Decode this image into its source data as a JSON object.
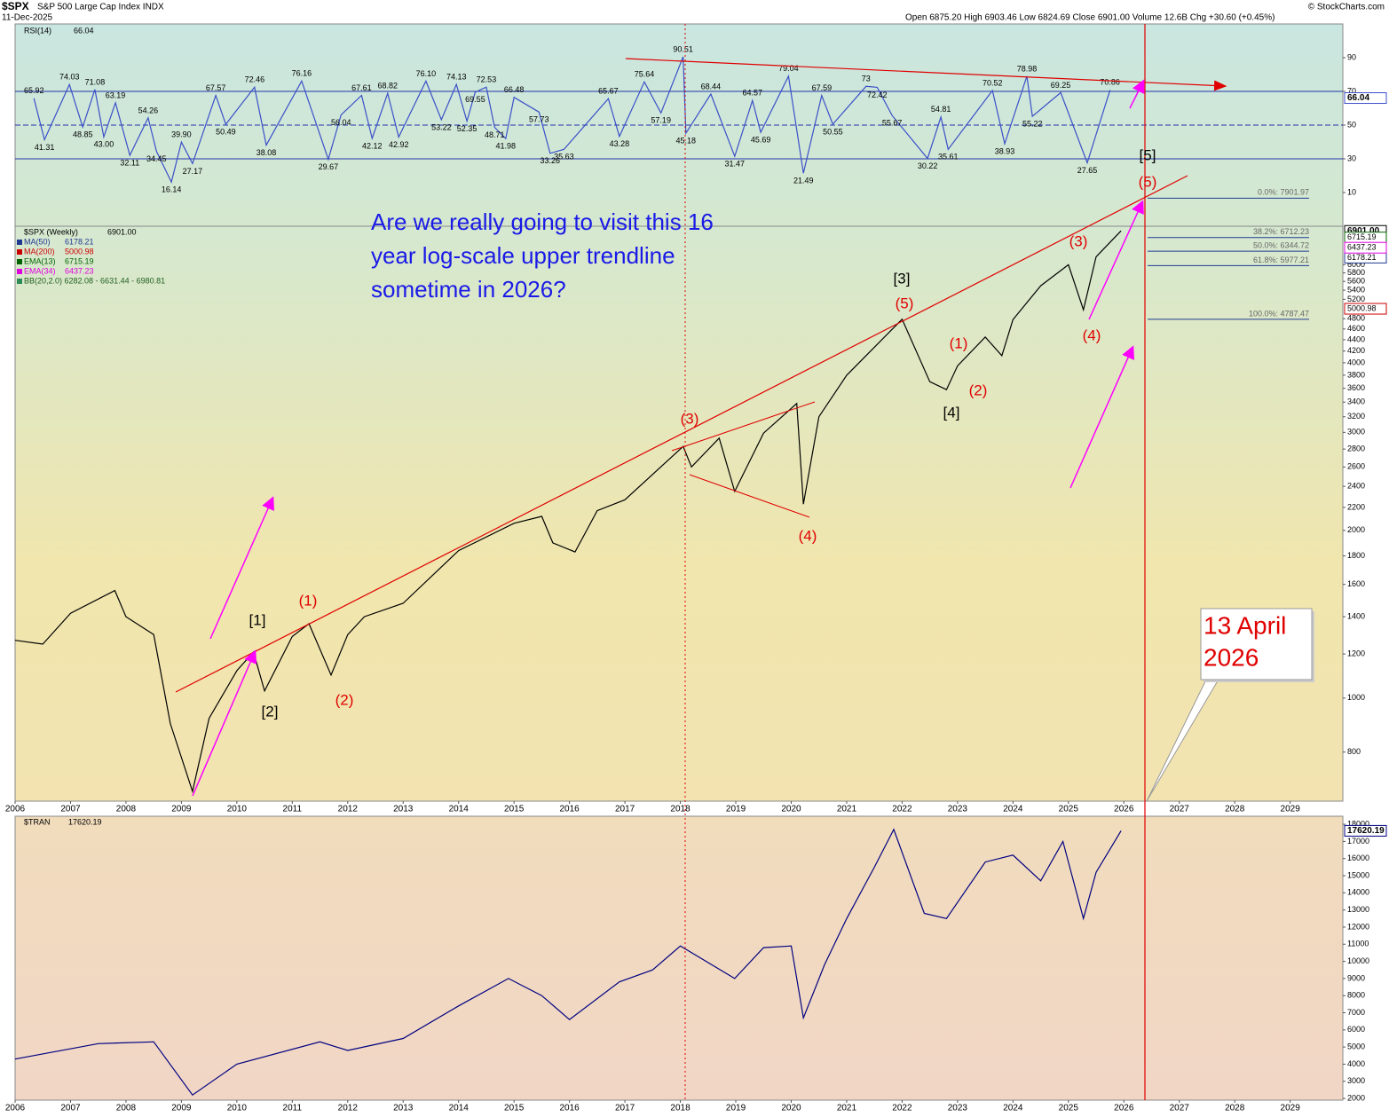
{
  "header": {
    "symbol": "$SPX",
    "name": "S&P 500 Large Cap Index INDX",
    "date": "11-Dec-2025",
    "quote": "Open 6875.20  High 6903.46  Low 6824.69  Close 6901.00  Volume 12.6B  Chg +30.60 (+0.45%)",
    "credit": "© StockCharts.com"
  },
  "annotation": {
    "question": [
      "Are we really going to visit this 16",
      "year log-scale upper trendline",
      "sometime in 2026?"
    ],
    "callout": [
      "13 April",
      "2026"
    ],
    "waves": [
      "[1]",
      "[2]",
      "(1)",
      "(2)",
      "(3)",
      "(4)",
      "[3]",
      "(5)",
      "(1)",
      "(2)",
      "[4]",
      "(3)",
      "(4)",
      "[5]",
      "(5)"
    ]
  },
  "chart_data": [
    {
      "type": "line",
      "xlim": [
        2006,
        2029.95
      ],
      "ylim": [
        -10,
        110
      ],
      "yticks": [
        10,
        30,
        50,
        70,
        90
      ],
      "hlines": [
        70,
        50,
        30
      ],
      "x": [
        2006.34,
        2006.53,
        2006.98,
        2007.22,
        2007.44,
        2007.6,
        2007.81,
        2008.07,
        2008.4,
        2008.55,
        2008.82,
        2009.0,
        2009.2,
        2009.62,
        2009.8,
        2010.32,
        2010.53,
        2011.17,
        2011.65,
        2011.88,
        2012.25,
        2012.44,
        2012.72,
        2012.92,
        2013.41,
        2013.69,
        2013.96,
        2014.15,
        2014.3,
        2014.5,
        2014.65,
        2014.85,
        2015.0,
        2015.45,
        2015.65,
        2015.9,
        2016.7,
        2016.9,
        2017.35,
        2017.65,
        2018.05,
        2018.1,
        2018.55,
        2018.98,
        2019.3,
        2019.45,
        2019.95,
        2020.22,
        2020.55,
        2020.75,
        2021.35,
        2021.55,
        2021.82,
        2022.46,
        2022.7,
        2022.83,
        2023.63,
        2023.85,
        2024.25,
        2024.35,
        2024.86,
        2025.34,
        2025.75
      ],
      "series": [
        {
          "name": "RSI(14)",
          "color": "#3b4fc8",
          "values": [
            65.92,
            41.31,
            74.03,
            48.85,
            71.08,
            43.0,
            63.19,
            32.11,
            54.26,
            34.45,
            16.14,
            39.9,
            27.17,
            67.57,
            50.49,
            72.46,
            38.08,
            76.16,
            29.67,
            56.04,
            67.61,
            42.12,
            68.82,
            42.92,
            76.1,
            53.22,
            74.13,
            52.35,
            69.55,
            72.53,
            48.71,
            41.98,
            66.48,
            57.73,
            33.26,
            35.63,
            65.67,
            43.28,
            75.64,
            57.19,
            90.51,
            45.18,
            68.44,
            31.47,
            64.57,
            45.69,
            79.04,
            21.49,
            67.59,
            50.55,
            73,
            72.42,
            55.67,
            30.22,
            54.81,
            35.61,
            70.52,
            38.93,
            78.98,
            55.22,
            69.25,
            27.65,
            70.86
          ],
          "value_labels": [
            "65.92",
            "41.31",
            "74.03",
            "48.85",
            "71.08",
            "43.00",
            "63.19",
            "32.11",
            "54.26",
            "34.45",
            "16.14",
            "39.90",
            "27.17",
            "67.57",
            "50.49",
            "72.46",
            "38.08",
            "76.16",
            "29.67",
            "56.04",
            "67.61",
            "42.12",
            "68.82",
            "42.92",
            "76.10",
            "53.22",
            "74.13",
            "52.35",
            "69.55",
            "72.53",
            "48.71",
            "41.98",
            "66.48",
            "57.73",
            "33.26",
            "35.63",
            "65.67",
            "43.28",
            "75.64",
            "57.19",
            "90.51",
            "45.18",
            "68.44",
            "31.47",
            "64.57",
            "45.69",
            "79.04",
            "21.49",
            "67.59",
            "50.55",
            "73",
            "72.42",
            "55.67",
            "30.22",
            "54.81",
            "35.61",
            "70.52",
            "38.93",
            "78.98",
            "55.22",
            "69.25",
            "27.65",
            "70.86"
          ]
        }
      ],
      "last": {
        "value": 66.04,
        "label": "66.04"
      }
    },
    {
      "type": "line",
      "log": true,
      "xlim": [
        2006,
        2029.95
      ],
      "ylim": [
        653,
        7035
      ],
      "yticks": [
        800,
        1000,
        1200,
        1400,
        1600,
        1800,
        2000,
        2200,
        2400,
        2600,
        2800,
        3000,
        3200,
        3400,
        3600,
        3800,
        4000,
        4200,
        4400,
        4600,
        4800,
        5200,
        5400,
        5600,
        5800,
        6000
      ],
      "xticks": [
        2006,
        2007,
        2008,
        2009,
        2010,
        2011,
        2012,
        2013,
        2014,
        2015,
        2016,
        2017,
        2018,
        2019,
        2020,
        2021,
        2022,
        2023,
        2024,
        2025,
        2026,
        2027,
        2028,
        2029
      ],
      "x": [
        2006.0,
        2006.5,
        2007.0,
        2007.8,
        2008.0,
        2008.5,
        2008.8,
        2009.2,
        2009.5,
        2010.0,
        2010.3,
        2010.5,
        2011.0,
        2011.3,
        2011.7,
        2012.0,
        2012.3,
        2013.0,
        2014.0,
        2015.0,
        2015.5,
        2015.7,
        2016.1,
        2016.5,
        2017.0,
        2018.05,
        2018.2,
        2018.7,
        2018.98,
        2019.5,
        2020.1,
        2020.22,
        2020.5,
        2021.0,
        2022.0,
        2022.5,
        2022.8,
        2023.0,
        2023.5,
        2023.8,
        2024.0,
        2024.5,
        2025.0,
        2025.27,
        2025.5,
        2025.95
      ],
      "series": [
        {
          "name": "$SPX (Weekly)",
          "color": "#000000",
          "values": [
            1270,
            1250,
            1420,
            1560,
            1400,
            1300,
            900,
            680,
            920,
            1120,
            1210,
            1030,
            1290,
            1360,
            1100,
            1300,
            1400,
            1480,
            1840,
            2060,
            2120,
            1900,
            1830,
            2170,
            2270,
            2830,
            2600,
            2930,
            2350,
            2990,
            3380,
            2230,
            3200,
            3800,
            4790,
            3700,
            3580,
            3950,
            4450,
            4120,
            4780,
            5500,
            6000,
            4980,
            6200,
            6901
          ]
        }
      ],
      "last": {
        "value": 6901,
        "label": "6901.00"
      },
      "indicators": [
        {
          "name": "MA(50)",
          "value": 6178.21,
          "label": "6178.21",
          "color": "#1f3a93"
        },
        {
          "name": "MA(200)",
          "value": 5000.98,
          "label": "5000.98",
          "color": "#cc0000"
        },
        {
          "name": "EMA(13)",
          "value": 6715.19,
          "label": "6715.19",
          "color": "#006400"
        },
        {
          "name": "EMA(34)",
          "value": 6437.23,
          "label": "6437.23",
          "color": "#e000e0"
        }
      ],
      "bands": "BB(20,2.0) 6282.08 - 6631.44 - 6980.81",
      "fib": {
        "values": [
          7901.97,
          6712.23,
          6344.72,
          5977.21,
          4787.47
        ],
        "value_labels": [
          "0.0%: 7901.97",
          "38.2%: 6712.23",
          "50.0%: 6344.72",
          "61.8%: 5977.21",
          "100.0%: 4787.47"
        ],
        "color": "#1f3a93"
      }
    },
    {
      "type": "line",
      "xlim": [
        2006,
        2029.95
      ],
      "ylim": [
        1900,
        18470
      ],
      "yticks": [
        2000,
        3000,
        4000,
        5000,
        6000,
        7000,
        8000,
        9000,
        10000,
        11000,
        12000,
        13000,
        14000,
        15000,
        16000,
        17000,
        18000
      ],
      "xticks": [
        2006,
        2007,
        2008,
        2009,
        2010,
        2011,
        2012,
        2013,
        2014,
        2015,
        2016,
        2017,
        2018,
        2019,
        2020,
        2021,
        2022,
        2023,
        2024,
        2025,
        2026,
        2027,
        2028,
        2029
      ],
      "x": [
        2006.0,
        2007.5,
        2008.5,
        2009.2,
        2010.0,
        2011.5,
        2012.0,
        2013.0,
        2014.0,
        2014.9,
        2015.5,
        2016.0,
        2016.9,
        2017.5,
        2018.0,
        2018.98,
        2019.5,
        2020.0,
        2020.22,
        2020.6,
        2021.0,
        2021.5,
        2021.85,
        2022.4,
        2022.8,
        2023.5,
        2024.0,
        2024.5,
        2024.9,
        2025.27,
        2025.5,
        2025.95
      ],
      "series": [
        {
          "name": "$TRAN",
          "color": "#000080",
          "values": [
            4300,
            5200,
            5300,
            2200,
            4000,
            5300,
            4800,
            5500,
            7400,
            9000,
            8000,
            6600,
            8800,
            9500,
            10900,
            9000,
            10800,
            10900,
            6700,
            9800,
            12500,
            15500,
            17700,
            12800,
            12500,
            15800,
            16200,
            14700,
            17000,
            12500,
            15200,
            17620.19
          ]
        }
      ],
      "last": {
        "value": 17620.19,
        "label": "17620.19"
      }
    }
  ]
}
